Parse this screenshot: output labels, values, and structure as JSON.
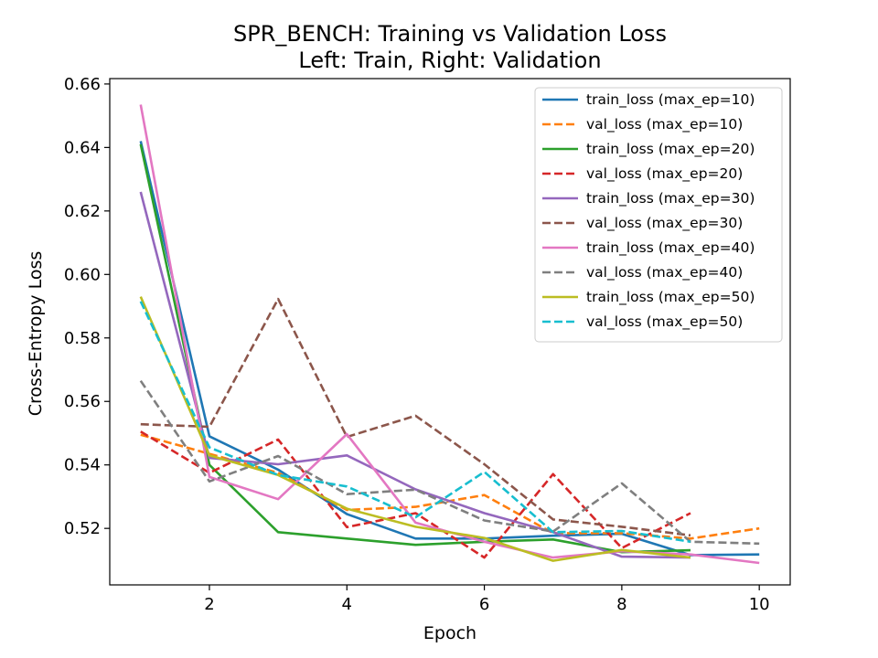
{
  "chart_data": {
    "type": "line",
    "title": "SPR_BENCH: Training vs Validation Loss",
    "subtitle": "Left: Train, Right: Validation",
    "xlabel": "Epoch",
    "ylabel": "Cross-Entropy Loss",
    "xlim": [
      0.55,
      10.45
    ],
    "ylim": [
      0.5022,
      0.6617
    ],
    "xticks": [
      2,
      4,
      6,
      8,
      10
    ],
    "yticks": [
      0.52,
      0.54,
      0.56,
      0.58,
      0.6,
      0.62,
      0.64,
      0.66
    ],
    "grid": false,
    "legend_position": "top-right",
    "series": [
      {
        "name": "train_loss (max_ep=10)",
        "color": "#1f77b4",
        "dash": "solid",
        "x": [
          1,
          2,
          3,
          4,
          5,
          6,
          7,
          8,
          9,
          10
        ],
        "y": [
          0.642,
          0.549,
          0.5385,
          0.5245,
          0.5168,
          0.5168,
          0.5177,
          0.5183,
          0.5116,
          0.5118
        ]
      },
      {
        "name": "val_loss (max_ep=10)",
        "color": "#ff7f0e",
        "dash": "dashed",
        "x": [
          1,
          2,
          3,
          4,
          5,
          6,
          7,
          8,
          9,
          10
        ],
        "y": [
          0.5495,
          0.5435,
          0.5375,
          0.5258,
          0.5268,
          0.5305,
          0.5185,
          0.5185,
          0.5168,
          0.52
        ]
      },
      {
        "name": "train_loss (max_ep=20)",
        "color": "#2ca02c",
        "dash": "solid",
        "x": [
          1,
          2,
          3,
          4,
          5,
          6,
          7,
          8,
          9
        ],
        "y": [
          0.641,
          0.54,
          0.5188,
          0.5168,
          0.5148,
          0.5158,
          0.5165,
          0.5125,
          0.5131
        ]
      },
      {
        "name": "val_loss (max_ep=20)",
        "color": "#d62728",
        "dash": "dashed",
        "x": [
          1,
          2,
          3,
          4,
          5,
          6,
          7,
          8,
          9
        ],
        "y": [
          0.5505,
          0.5375,
          0.548,
          0.5204,
          0.5248,
          0.5108,
          0.5371,
          0.5138,
          0.5248
        ]
      },
      {
        "name": "train_loss (max_ep=30)",
        "color": "#9467bd",
        "dash": "solid",
        "x": [
          1,
          2,
          3,
          4,
          5,
          6,
          7,
          8,
          9
        ],
        "y": [
          0.626,
          0.5422,
          0.5402,
          0.543,
          0.5323,
          0.5248,
          0.5188,
          0.5111,
          0.5108
        ]
      },
      {
        "name": "val_loss (max_ep=30)",
        "color": "#8c564b",
        "dash": "dashed",
        "x": [
          1,
          2,
          3,
          4,
          5,
          6,
          7,
          8,
          9
        ],
        "y": [
          0.5528,
          0.552,
          0.5923,
          0.5488,
          0.5555,
          0.5402,
          0.5228,
          0.5205,
          0.5178
        ]
      },
      {
        "name": "train_loss (max_ep=40)",
        "color": "#e377c2",
        "dash": "solid",
        "x": [
          1,
          2,
          3,
          4,
          5,
          6,
          7,
          8,
          9,
          10
        ],
        "y": [
          0.6535,
          0.5362,
          0.5292,
          0.5497,
          0.5218,
          0.5158,
          0.5108,
          0.5128,
          0.5118,
          0.5091
        ]
      },
      {
        "name": "val_loss (max_ep=40)",
        "color": "#7f7f7f",
        "dash": "dashed",
        "x": [
          1,
          2,
          3,
          4,
          5,
          6,
          7,
          8,
          9,
          10
        ],
        "y": [
          0.5665,
          0.5348,
          0.5428,
          0.5308,
          0.5322,
          0.5225,
          0.519,
          0.5342,
          0.5158,
          0.5152
        ]
      },
      {
        "name": "train_loss (max_ep=50)",
        "color": "#bcbd22",
        "dash": "solid",
        "x": [
          1,
          2,
          3,
          4,
          5,
          6,
          7,
          8,
          9
        ],
        "y": [
          0.593,
          0.543,
          0.5368,
          0.5262,
          0.5205,
          0.517,
          0.5098,
          0.5132,
          0.5108
        ]
      },
      {
        "name": "val_loss (max_ep=50)",
        "color": "#17becf",
        "dash": "dashed",
        "x": [
          1,
          2,
          3,
          4,
          5,
          6,
          7,
          8,
          9
        ],
        "y": [
          0.5915,
          0.5455,
          0.5368,
          0.5332,
          0.5235,
          0.5378,
          0.5188,
          0.5192,
          0.5158
        ]
      }
    ]
  }
}
